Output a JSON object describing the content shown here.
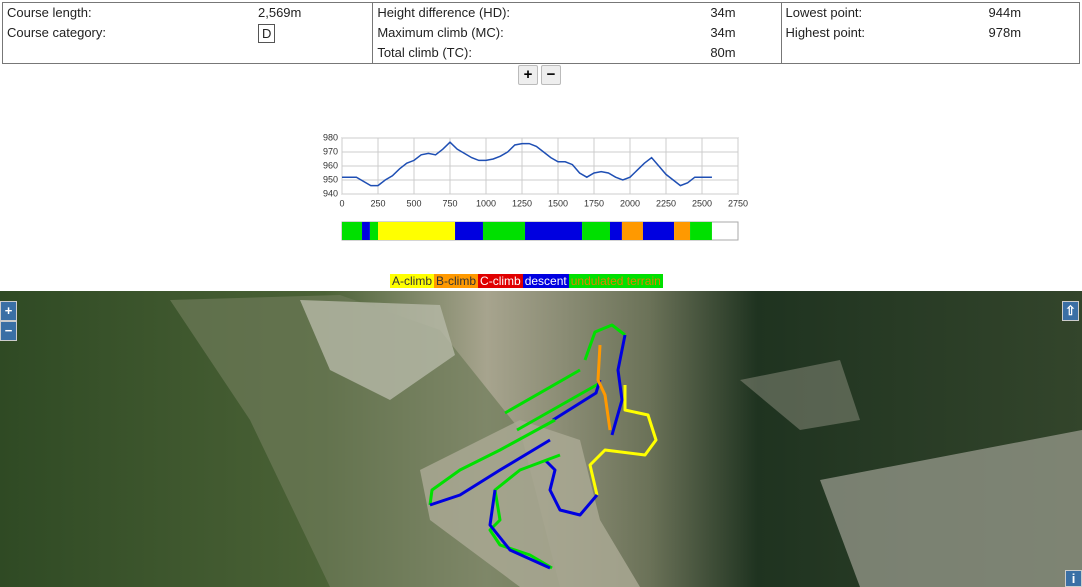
{
  "stats": {
    "columns": [
      {
        "rows": [
          {
            "label": "Course length:",
            "value": "2,569m"
          },
          {
            "label": "Course category:",
            "value": "D"
          }
        ]
      },
      {
        "rows": [
          {
            "label": "Height difference (HD):",
            "value": "34m"
          },
          {
            "label": "Maximum climb (MC):",
            "value": "34m"
          },
          {
            "label": "Total climb (TC):",
            "value": "80m"
          }
        ]
      },
      {
        "rows": [
          {
            "label": "Lowest point:",
            "value": "944m"
          },
          {
            "label": "Highest point:",
            "value": "978m"
          }
        ]
      }
    ]
  },
  "zoom": {
    "plus": "+",
    "minus": "−"
  },
  "elevation_profile": {
    "type": "line",
    "color": "#1f4fb4",
    "x": [
      0,
      100,
      200,
      250,
      300,
      350,
      400,
      450,
      500,
      550,
      600,
      650,
      700,
      750,
      800,
      850,
      900,
      950,
      1000,
      1050,
      1100,
      1150,
      1200,
      1250,
      1300,
      1350,
      1400,
      1450,
      1500,
      1550,
      1600,
      1650,
      1700,
      1750,
      1800,
      1850,
      1900,
      1950,
      2000,
      2050,
      2100,
      2150,
      2200,
      2250,
      2300,
      2350,
      2400,
      2450,
      2500,
      2569
    ],
    "values": [
      952,
      952,
      946,
      946,
      950,
      953,
      958,
      962,
      964,
      968,
      969,
      968,
      972,
      977,
      972,
      969,
      966,
      964,
      964,
      965,
      967,
      970,
      975,
      976,
      976,
      974,
      970,
      966,
      963,
      963,
      961,
      955,
      952,
      955,
      956,
      955,
      952,
      950,
      952,
      957,
      962,
      966,
      960,
      954,
      950,
      946,
      948,
      952,
      952,
      952
    ],
    "xlim": [
      0,
      2750
    ],
    "ylim": [
      940,
      980
    ],
    "xticks": [
      0,
      250,
      500,
      750,
      1000,
      1250,
      1500,
      1750,
      2000,
      2250,
      2500,
      2750
    ],
    "yticks": [
      940,
      950,
      960,
      970,
      980
    ],
    "grid": true
  },
  "course_bar": {
    "xlim": [
      0,
      2750
    ],
    "segments": [
      {
        "from": 0,
        "to": 139,
        "color": "#00e000"
      },
      {
        "from": 139,
        "to": 194,
        "color": "#0000e0"
      },
      {
        "from": 194,
        "to": 250,
        "color": "#00e000"
      },
      {
        "from": 250,
        "to": 785,
        "color": "#ffff00"
      },
      {
        "from": 785,
        "to": 979,
        "color": "#0000e0"
      },
      {
        "from": 979,
        "to": 1271,
        "color": "#00e000"
      },
      {
        "from": 1271,
        "to": 1667,
        "color": "#0000e0"
      },
      {
        "from": 1667,
        "to": 1861,
        "color": "#00e000"
      },
      {
        "from": 1861,
        "to": 1944,
        "color": "#0000e0"
      },
      {
        "from": 1944,
        "to": 2090,
        "color": "#ff9900"
      },
      {
        "from": 2090,
        "to": 2306,
        "color": "#0000e0"
      },
      {
        "from": 2306,
        "to": 2417,
        "color": "#ff9900"
      },
      {
        "from": 2417,
        "to": 2569,
        "color": "#00e000"
      }
    ]
  },
  "legend": [
    {
      "label": "A-climb",
      "color": "#ffff00",
      "text_color": "#333"
    },
    {
      "label": "B-climb",
      "color": "#ff9900",
      "text_color": "#333"
    },
    {
      "label": "C-climb",
      "color": "#e00000",
      "text_color": "#fff"
    },
    {
      "label": "descent",
      "color": "#0000e0",
      "text_color": "#fff"
    },
    {
      "label": "undulated terrain",
      "color": "#00e000",
      "text_color": "#e08000"
    }
  ],
  "map_controls": {
    "zoom_in": "+",
    "zoom_out": "−",
    "expand": "⇧",
    "info": "i"
  }
}
